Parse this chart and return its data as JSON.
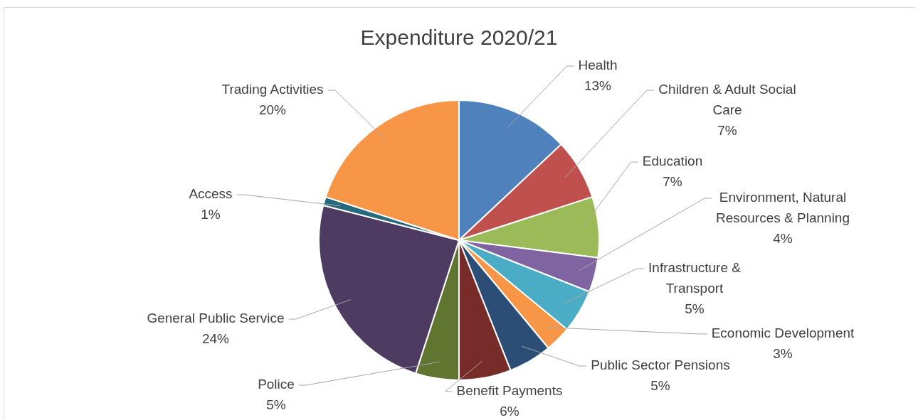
{
  "chart_data": {
    "type": "pie",
    "title": "Expenditure 2020/21",
    "categories": [
      "Health",
      "Children & Adult Social Care",
      "Education",
      "Environment, Natural Resources & Planning",
      "Infrastructure & Transport",
      "Economic Development",
      "Public Sector Pensions",
      "Benefit Payments",
      "Police",
      "General Public Service",
      "Access",
      "Trading Activities"
    ],
    "values": [
      13,
      7,
      7,
      4,
      5,
      3,
      5,
      6,
      5,
      24,
      1,
      20
    ],
    "value_labels": [
      "13%",
      "7%",
      "7%",
      "4%",
      "5%",
      "3%",
      "5%",
      "6%",
      "5%",
      "24%",
      "1%",
      "20%"
    ],
    "colors": [
      "#4f81bd",
      "#c0504d",
      "#9bbb59",
      "#8064a2",
      "#4bacc6",
      "#f79646",
      "#2c4d75",
      "#772c2a",
      "#5f7530",
      "#4d3b62",
      "#276a7c",
      "#f79646"
    ],
    "legend": false
  }
}
